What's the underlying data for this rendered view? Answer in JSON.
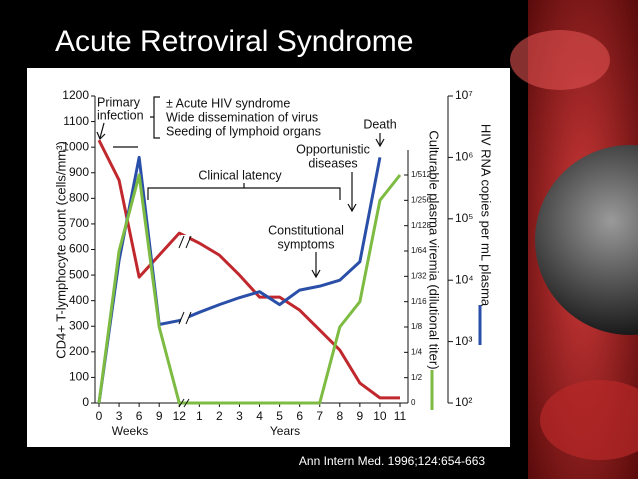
{
  "title": "Acute Retroviral Syndrome",
  "citation": "Ann Intern Med. 1996;124:654-663",
  "chart_data": {
    "type": "line",
    "categories": [
      "0",
      "3",
      "6",
      "9",
      "12",
      "1",
      "2",
      "3",
      "4",
      "5",
      "6",
      "7",
      "8",
      "9",
      "10",
      "11"
    ],
    "x_groups": [
      "Weeks",
      "Years"
    ],
    "ylabel": "CD4+ T-lymphocyte count (cells/mm³)",
    "y2label": "HIV RNA copies per mL plasma",
    "y3label": "Culturable plasma viremia (dilutional titer)",
    "ylim": [
      0,
      1200
    ],
    "yticks": [
      0,
      100,
      200,
      300,
      400,
      500,
      600,
      700,
      800,
      900,
      1000,
      1100,
      1200
    ],
    "y2lim": [
      100,
      10000000
    ],
    "y2log": true,
    "y2ticks": [
      {
        "value": 100,
        "label": "10²"
      },
      {
        "value": 1000,
        "label": "10³"
      },
      {
        "value": 10000,
        "label": "10⁴"
      },
      {
        "value": 100000,
        "label": "10⁵"
      },
      {
        "value": 1000000,
        "label": "10⁶"
      },
      {
        "value": 10000000,
        "label": "10⁷"
      }
    ],
    "y3lim": [
      0,
      0.001953125
    ],
    "y3ticks": [
      0,
      {
        "value": 0.5,
        "label": "1/2"
      },
      {
        "value": 0.25,
        "label": "1/4"
      },
      {
        "value": 0.125,
        "label": "1/8"
      },
      {
        "value": 0.0625,
        "label": "1/16"
      },
      {
        "value": 0.03125,
        "label": "1/32"
      },
      {
        "value": 0.015625,
        "label": "1/64"
      },
      {
        "value": 0.0078125,
        "label": "1/128"
      },
      {
        "value": 0.00390625,
        "label": "1/256"
      },
      {
        "value": 0.001953125,
        "label": "1/512"
      }
    ],
    "series": [
      {
        "color": "#c0282d",
        "axis": "y",
        "values": [
          1027,
          871,
          492,
          578,
          664,
          625,
          578,
          500,
          414,
          414,
          363,
          285,
          207,
          78,
          20,
          20
        ]
      },
      {
        "color": "#2a4fa8",
        "axis": "y2",
        "values": [
          100,
          21000,
          1000000,
          1900,
          2200,
          3000,
          4000,
          5200,
          6500,
          4000,
          6900,
          8000,
          10000,
          20000,
          1000000,
          null
        ]
      },
      {
        "color": "#7dbb42",
        "axis": "y3",
        "values": [
          0,
          0.015625,
          0.001953125,
          0.125,
          0,
          0,
          0,
          0,
          0,
          0,
          0,
          0,
          0.125,
          0.0625,
          0.00390625,
          0.001953125
        ]
      }
    ],
    "annotations": [
      "Primary",
      "infection",
      "± Acute HIV syndrome",
      "Wide dissemination of virus",
      "Seeding of lymphoid organs",
      "Clinical latency",
      "Constitutional",
      "symptoms",
      "Opportunistic",
      "diseases",
      "Death"
    ]
  }
}
